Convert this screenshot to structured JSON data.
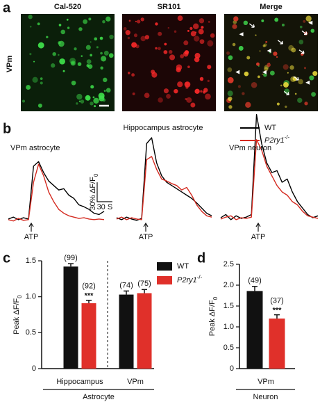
{
  "panel_labels": [
    "a",
    "b",
    "c",
    "d"
  ],
  "images": {
    "row_label": "VPm",
    "titles": [
      {
        "text": "Cal-520",
        "color": "#2aa52a"
      },
      {
        "text": "SR101",
        "color": "#d42020"
      },
      {
        "text": "Merge",
        "color": "#222222"
      }
    ]
  },
  "chart_data": [
    {
      "type": "line",
      "title": "VPm astrocyte",
      "stimulus_label": "ATP",
      "x": [
        0,
        10,
        20,
        30,
        40,
        50,
        60,
        70,
        80,
        90,
        100,
        110,
        120,
        130,
        140,
        150,
        160,
        170,
        180,
        190
      ],
      "xlim": [
        0,
        190
      ],
      "ylim": [
        -10,
        170
      ],
      "series": [
        {
          "name": "WT",
          "color": "#000000",
          "values": [
            3,
            6,
            2,
            5,
            3,
            85,
            92,
            75,
            62,
            55,
            48,
            50,
            40,
            35,
            25,
            22,
            18,
            12,
            10,
            15
          ]
        },
        {
          "name": "P2ry1",
          "name_sup": "-/-",
          "color": "#d42a20",
          "values": [
            2,
            0,
            4,
            1,
            2,
            60,
            88,
            70,
            45,
            30,
            18,
            12,
            8,
            6,
            4,
            5,
            3,
            2,
            3,
            2
          ]
        }
      ],
      "scale_bar": {
        "y_value": 30,
        "y_label": "30% ΔF/F",
        "y_label_sub": "0",
        "x_value": 30,
        "x_label": "30 S"
      }
    },
    {
      "type": "line",
      "title": "Hippocampus astrocyte",
      "stimulus_label": "ATP",
      "x": [
        0,
        10,
        20,
        30,
        40,
        50,
        60,
        70,
        80,
        90,
        100,
        110,
        120,
        130,
        140,
        150,
        160,
        170,
        180,
        190
      ],
      "xlim": [
        0,
        190
      ],
      "ylim": [
        -10,
        170
      ],
      "series": [
        {
          "color": "#000000",
          "values": [
            5,
            2,
            6,
            3,
            1,
            4,
            120,
            129,
            90,
            70,
            60,
            55,
            50,
            45,
            40,
            35,
            28,
            20,
            12,
            8
          ]
        },
        {
          "color": "#d42a20",
          "values": [
            3,
            6,
            2,
            5,
            3,
            2,
            95,
            100,
            80,
            65,
            62,
            58,
            55,
            48,
            52,
            40,
            25,
            15,
            8,
            6
          ]
        }
      ]
    },
    {
      "type": "line",
      "title": "VPm neuron",
      "stimulus_label": "ATP",
      "x": [
        0,
        10,
        20,
        30,
        40,
        50,
        60,
        70,
        80,
        90,
        100,
        110,
        120,
        130,
        140,
        150,
        160,
        170,
        180,
        190
      ],
      "xlim": [
        0,
        190
      ],
      "ylim": [
        -10,
        170
      ],
      "series": [
        {
          "color": "#000000",
          "values": [
            5,
            10,
            2,
            8,
            4,
            6,
            10,
            165,
            120,
            90,
            75,
            78,
            60,
            65,
            45,
            30,
            20,
            10,
            5,
            8
          ]
        },
        {
          "color": "#d42a20",
          "values": [
            3,
            6,
            8,
            2,
            5,
            4,
            6,
            126,
            110,
            85,
            70,
            55,
            45,
            40,
            30,
            25,
            15,
            8,
            6,
            4
          ]
        }
      ]
    },
    {
      "type": "bar",
      "y_label": "Peak ΔF/F",
      "y_label_sub": "0",
      "categories": [
        "Hippocampus",
        "VPm"
      ],
      "group_label": "Astrocyte",
      "ylim": [
        0,
        1.5
      ],
      "yticks": [
        0,
        0.5,
        {
          "value": 1,
          "label": "1.0"
        },
        1.5
      ],
      "series": [
        {
          "name": "WT",
          "color": "#111111",
          "values": [
            1.42,
            1.03
          ],
          "errors": [
            0.04,
            0.05
          ],
          "n_labels": [
            "(99)",
            "(74)"
          ],
          "significance": [
            null,
            null
          ]
        },
        {
          "name": "P2ry1",
          "name_sup": "-/-",
          "color": "#e0302a",
          "values": [
            0.91,
            1.05
          ],
          "errors": [
            0.04,
            0.05
          ],
          "n_labels": [
            "(92)",
            "(75)"
          ],
          "significance": [
            "***",
            null
          ]
        }
      ]
    },
    {
      "type": "bar",
      "y_label": "Peak ΔF/F",
      "y_label_sub": "0",
      "categories": [
        "VPm"
      ],
      "group_label": "Neuron",
      "ylim": [
        0,
        2.5
      ],
      "yticks": [
        0,
        0.5,
        {
          "value": 1,
          "label": "1.0"
        },
        1.5,
        {
          "value": 2,
          "label": "2.0"
        },
        2.5
      ],
      "series": [
        {
          "color": "#111111",
          "values": [
            1.86
          ],
          "errors": [
            0.11
          ],
          "n_labels": [
            "(49)"
          ],
          "significance": [
            null
          ]
        },
        {
          "color": "#e0302a",
          "values": [
            1.2
          ],
          "errors": [
            0.09
          ],
          "n_labels": [
            "(37)"
          ],
          "significance": [
            "***"
          ]
        }
      ]
    }
  ]
}
